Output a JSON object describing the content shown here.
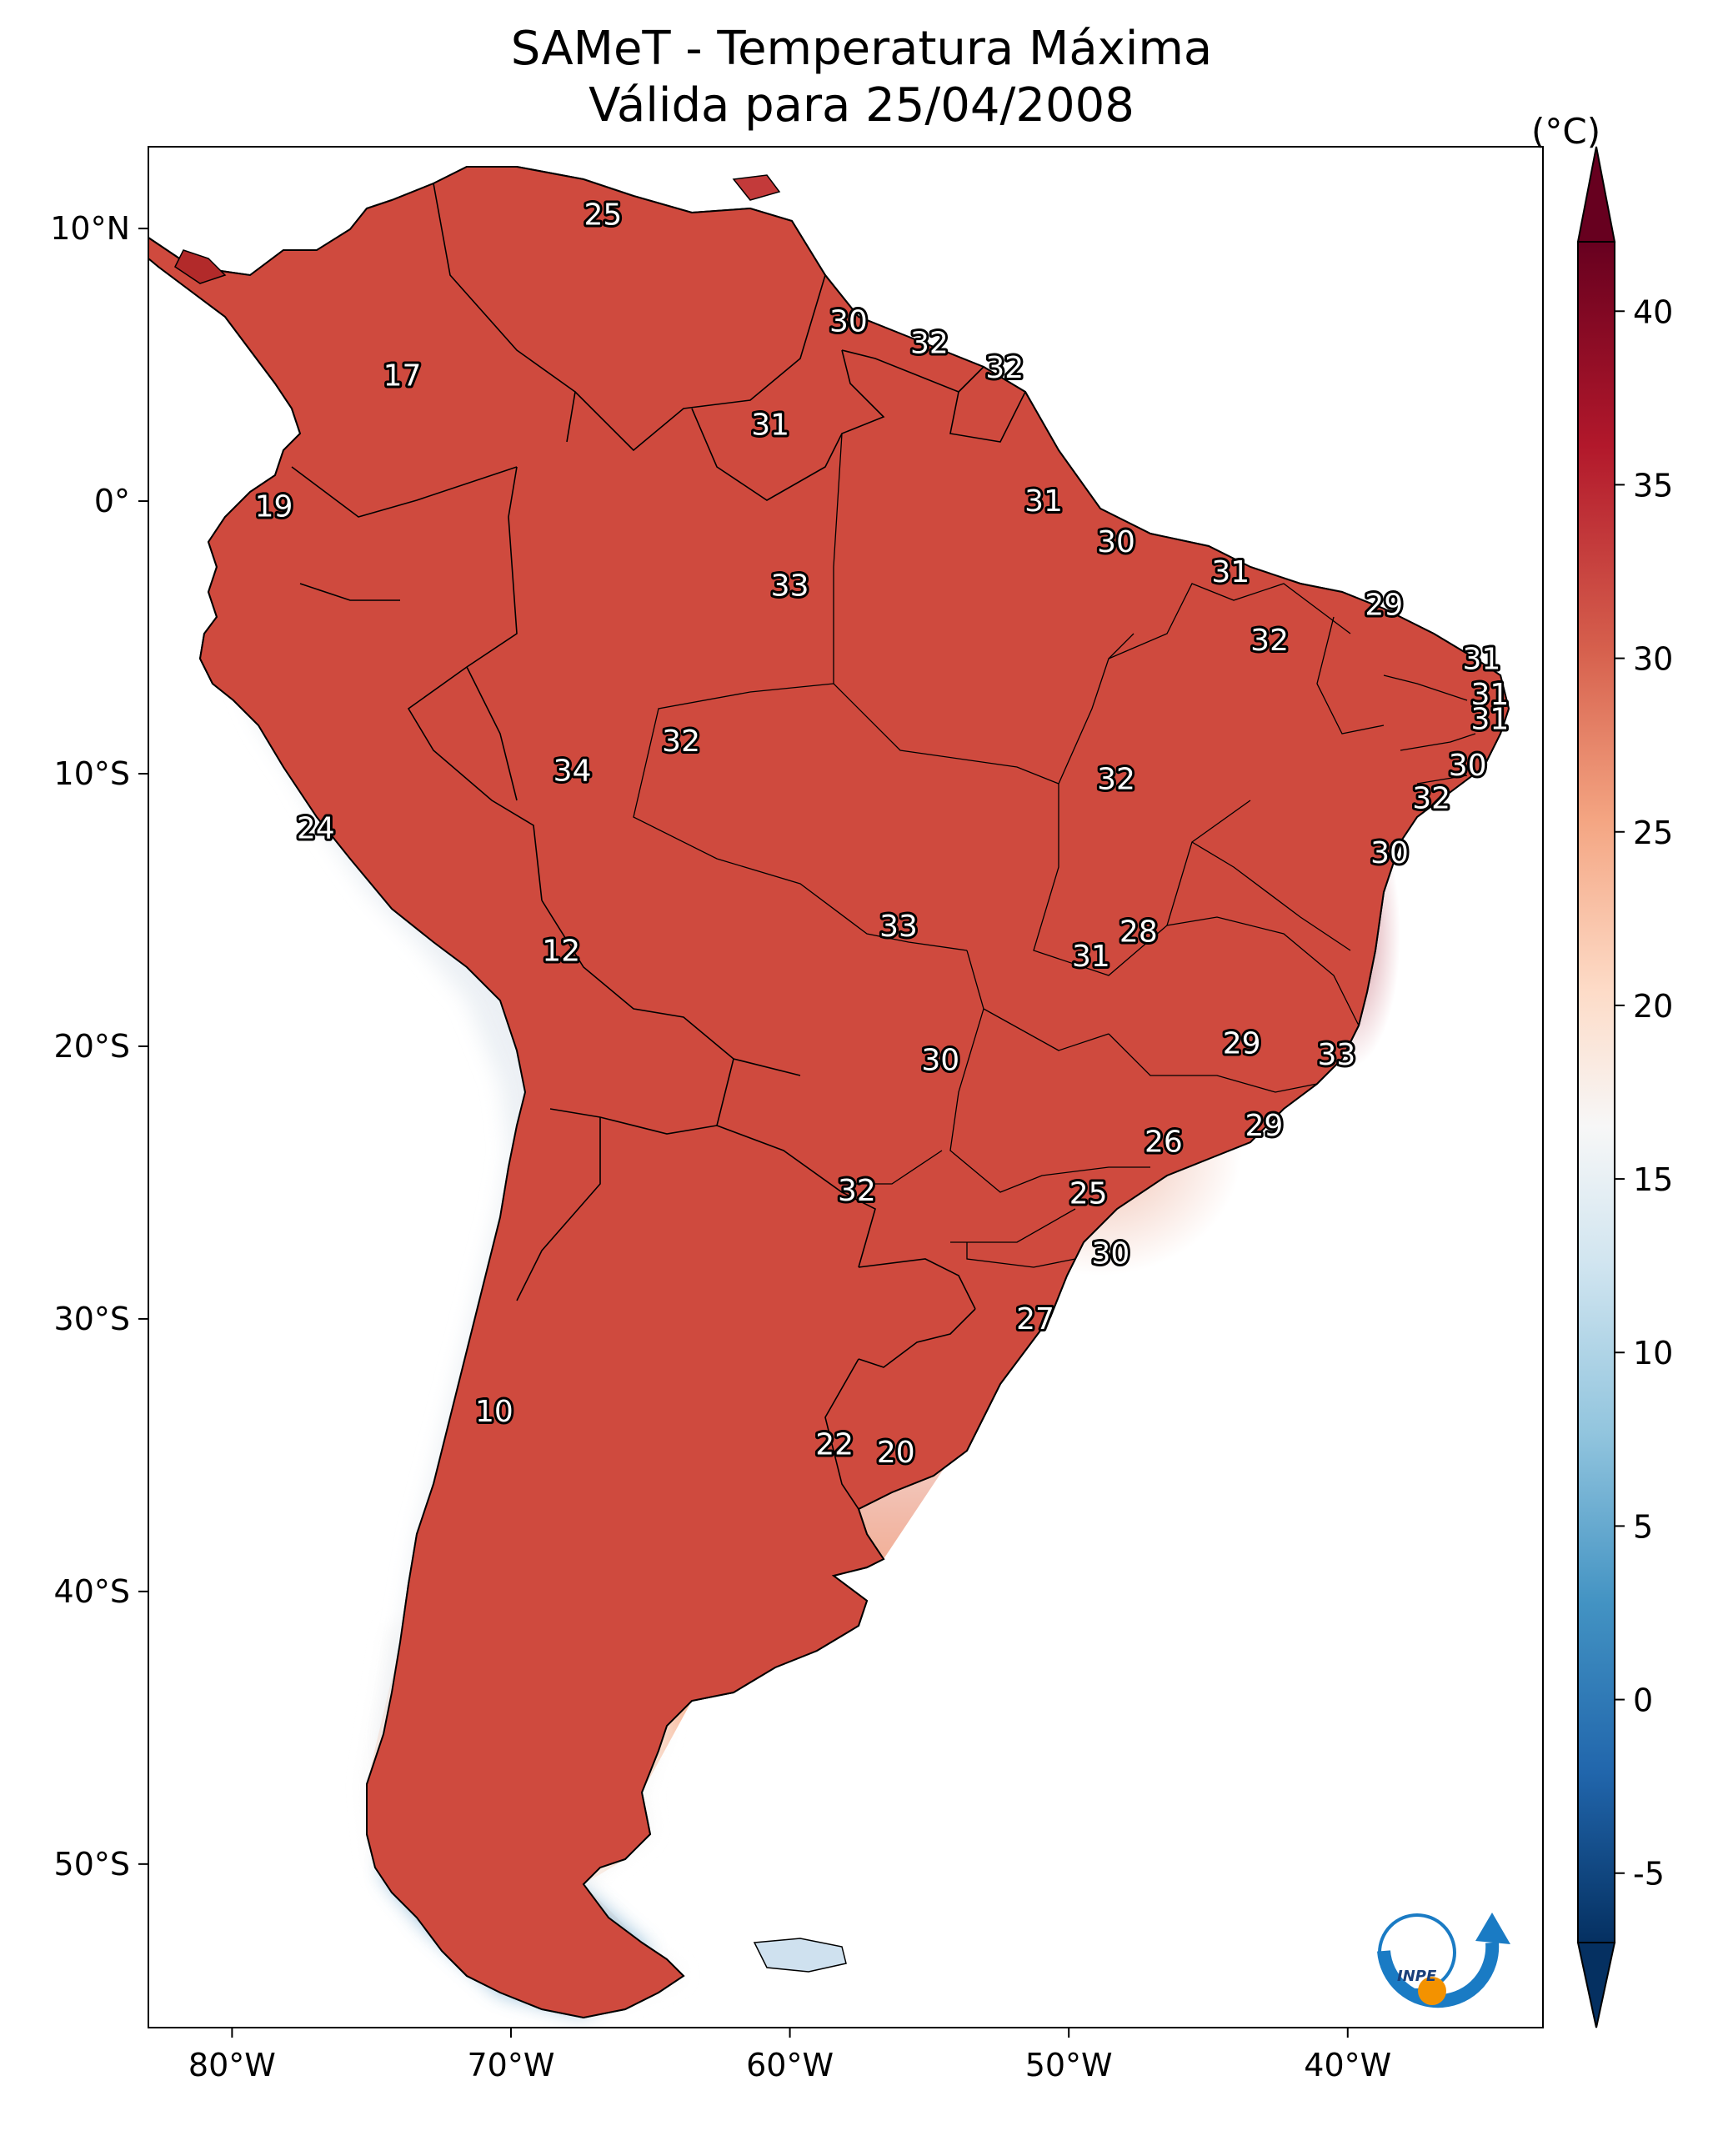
{
  "header": {
    "title": "SAMeT - Temperatura Máxima",
    "subtitle": "Válida para 25/04/2008"
  },
  "map": {
    "lon_range": [
      -83,
      -33
    ],
    "lat_range": [
      -56,
      13
    ],
    "lon_ticks": [
      {
        "value": -80,
        "label": "80°W"
      },
      {
        "value": -70,
        "label": "70°W"
      },
      {
        "value": -60,
        "label": "60°W"
      },
      {
        "value": -50,
        "label": "50°W"
      },
      {
        "value": -40,
        "label": "40°W"
      }
    ],
    "lat_ticks": [
      {
        "value": 10,
        "label": "10°N"
      },
      {
        "value": 0,
        "label": "0°"
      },
      {
        "value": -10,
        "label": "10°S"
      },
      {
        "value": -20,
        "label": "20°S"
      },
      {
        "value": -30,
        "label": "30°S"
      },
      {
        "value": -40,
        "label": "40°S"
      },
      {
        "value": -50,
        "label": "50°S"
      }
    ],
    "station_values": [
      {
        "lon": -66.7,
        "lat": 10.5,
        "value": "25"
      },
      {
        "lon": -57.9,
        "lat": 6.6,
        "value": "30"
      },
      {
        "lon": -55.0,
        "lat": 5.8,
        "value": "32"
      },
      {
        "lon": -52.3,
        "lat": 4.9,
        "value": "32"
      },
      {
        "lon": -73.9,
        "lat": 4.6,
        "value": "17"
      },
      {
        "lon": -60.7,
        "lat": 2.8,
        "value": "31"
      },
      {
        "lon": -78.5,
        "lat": -0.2,
        "value": "19"
      },
      {
        "lon": -50.9,
        "lat": 0.0,
        "value": "31"
      },
      {
        "lon": -48.3,
        "lat": -1.5,
        "value": "30"
      },
      {
        "lon": -44.2,
        "lat": -2.6,
        "value": "31"
      },
      {
        "lon": -60.0,
        "lat": -3.1,
        "value": "33"
      },
      {
        "lon": -38.7,
        "lat": -3.8,
        "value": "29"
      },
      {
        "lon": -42.8,
        "lat": -5.1,
        "value": "32"
      },
      {
        "lon": -35.2,
        "lat": -5.8,
        "value": "31"
      },
      {
        "lon": -34.9,
        "lat": -7.1,
        "value": "31"
      },
      {
        "lon": -34.9,
        "lat": -8.0,
        "value": "31"
      },
      {
        "lon": -63.9,
        "lat": -8.8,
        "value": "32"
      },
      {
        "lon": -67.8,
        "lat": -9.9,
        "value": "34"
      },
      {
        "lon": -35.7,
        "lat": -9.7,
        "value": "30"
      },
      {
        "lon": -48.3,
        "lat": -10.2,
        "value": "32"
      },
      {
        "lon": -37.0,
        "lat": -10.9,
        "value": "32"
      },
      {
        "lon": -77.0,
        "lat": -12.0,
        "value": "24"
      },
      {
        "lon": -38.5,
        "lat": -12.9,
        "value": "30"
      },
      {
        "lon": -56.1,
        "lat": -15.6,
        "value": "33"
      },
      {
        "lon": -47.5,
        "lat": -15.8,
        "value": "28"
      },
      {
        "lon": -49.2,
        "lat": -16.7,
        "value": "31"
      },
      {
        "lon": -68.2,
        "lat": -16.5,
        "value": "12"
      },
      {
        "lon": -43.8,
        "lat": -19.9,
        "value": "29"
      },
      {
        "lon": -40.4,
        "lat": -20.3,
        "value": "33"
      },
      {
        "lon": -54.6,
        "lat": -20.5,
        "value": "30"
      },
      {
        "lon": -43.0,
        "lat": -22.9,
        "value": "29"
      },
      {
        "lon": -46.6,
        "lat": -23.5,
        "value": "26"
      },
      {
        "lon": -57.6,
        "lat": -25.3,
        "value": "32"
      },
      {
        "lon": -49.3,
        "lat": -25.4,
        "value": "25"
      },
      {
        "lon": -48.5,
        "lat": -27.6,
        "value": "30"
      },
      {
        "lon": -51.2,
        "lat": -30.0,
        "value": "27"
      },
      {
        "lon": -70.6,
        "lat": -33.4,
        "value": "10"
      },
      {
        "lon": -58.4,
        "lat": -34.6,
        "value": "22"
      },
      {
        "lon": -56.2,
        "lat": -34.9,
        "value": "20"
      }
    ]
  },
  "colorbar": {
    "unit": "(°C)",
    "min": -7,
    "max": 42,
    "tick_values": [
      40,
      35,
      30,
      25,
      20,
      15,
      10,
      5,
      0,
      -5
    ],
    "tick_labels": [
      "40",
      "35",
      "30",
      "25",
      "20",
      "15",
      "10",
      "5",
      "0",
      "-5"
    ],
    "colormap": "RdBu_r",
    "colors": [
      "#053061",
      "#2166ac",
      "#4393c3",
      "#92c5de",
      "#d1e5f0",
      "#f7f7f7",
      "#fddbc7",
      "#f4a582",
      "#d6604d",
      "#b2182b",
      "#67001f"
    ]
  },
  "logo": {
    "text": "INPE",
    "colors": {
      "blue": "#1a7bc4",
      "orange": "#f39200"
    }
  }
}
